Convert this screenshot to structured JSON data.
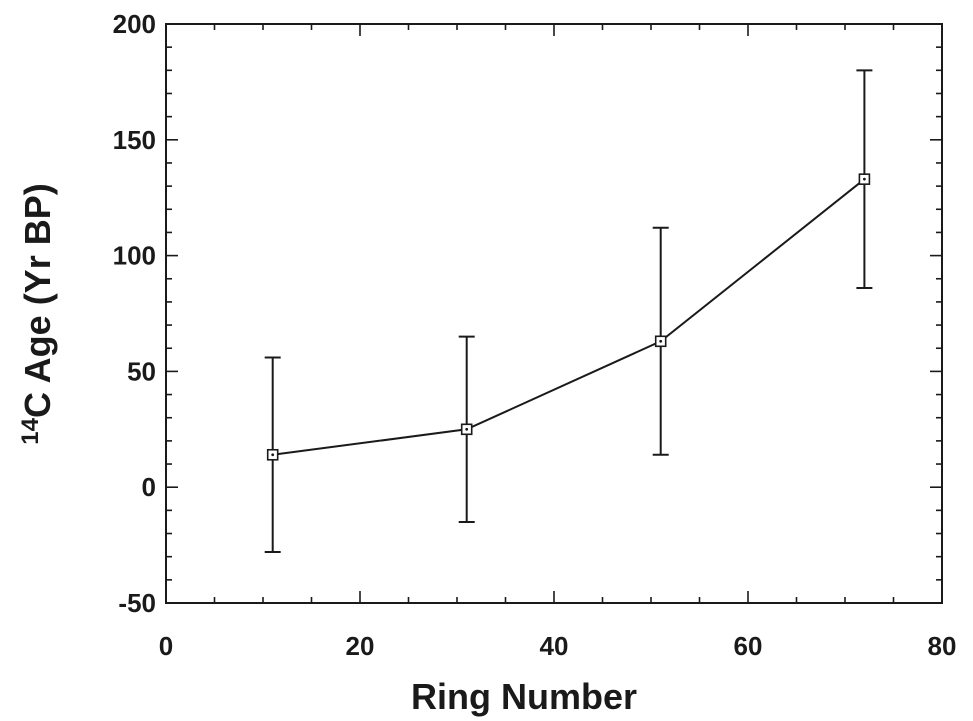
{
  "chart_data": {
    "type": "scatter",
    "xlabel": "Ring Number",
    "ylabel_prefix": "14",
    "ylabel_main": "C Age (Yr BP)",
    "xlim": [
      0,
      80
    ],
    "ylim": [
      -50,
      200
    ],
    "x_ticks": [
      0,
      20,
      40,
      60,
      80
    ],
    "y_ticks": [
      -50,
      0,
      50,
      100,
      150,
      200
    ],
    "x_tick_labels": [
      "0",
      "20",
      "40",
      "60",
      "80"
    ],
    "y_tick_labels": [
      "-50",
      "0",
      "50",
      "100",
      "150",
      "200"
    ],
    "x_minor_step": 5,
    "y_minor_step": 10,
    "grid": false,
    "series": [
      {
        "marker": "open-square-with-dot",
        "connected": true,
        "points": [
          {
            "x": 11,
            "y": 14,
            "yerr_low": -28,
            "yerr_high": 56
          },
          {
            "x": 31,
            "y": 25,
            "yerr_low": -15,
            "yerr_high": 65
          },
          {
            "x": 51,
            "y": 63,
            "yerr_low": 14,
            "yerr_high": 112
          },
          {
            "x": 72,
            "y": 133,
            "yerr_low": 86,
            "yerr_high": 180
          }
        ]
      }
    ]
  }
}
